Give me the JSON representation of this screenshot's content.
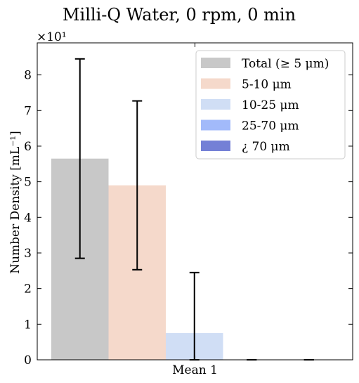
{
  "chart_data": {
    "type": "bar",
    "title": "Milli-Q Water, 0 rpm, 0 min",
    "ylabel": "Number Density [mL⁻¹]",
    "xlabel": "",
    "y_multiplier": "×10¹",
    "categories": [
      "Mean 1"
    ],
    "ylim": [
      0,
      8.9
    ],
    "yticks": [
      0,
      1,
      2,
      3,
      4,
      5,
      6,
      7,
      8
    ],
    "legend_position": "top-right",
    "series": [
      {
        "name": "Total (≥ 5 μm)",
        "value": 5.65,
        "error": 2.8,
        "color": "#c8c8c8"
      },
      {
        "name": "5-10 μm",
        "value": 4.9,
        "error": 2.37,
        "color": "#f5d9cb"
      },
      {
        "name": "10-25 μm",
        "value": 0.75,
        "error": 1.7,
        "color": "#d0def5"
      },
      {
        "name": "25-70 μm",
        "value": 0,
        "error": 0,
        "color": "#a2bafa"
      },
      {
        "name": "¿ 70 μm",
        "value": 0,
        "error": 0,
        "color": "#7480d6"
      }
    ]
  }
}
